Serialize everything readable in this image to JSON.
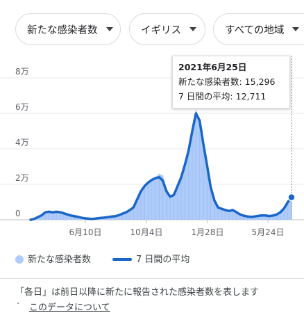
{
  "filters": [
    {
      "label": "新たな感染者数"
    },
    {
      "label": "イギリス"
    },
    {
      "label": "すべての地域"
    }
  ],
  "tooltip": {
    "date": "2021年6月25日",
    "line1": "新たな感染者数: 15,296",
    "line2": "7 日間の平均: 12,711"
  },
  "legend": {
    "daily": "新たな感染者数",
    "avg": "7 日間の平均"
  },
  "colors": {
    "bars": "#aecbfa",
    "line": "#1a66c9"
  },
  "footnote": {
    "text": "「各日」は前日以降に新たに報告された感染者数を表します",
    "bullet": "·",
    "link": "このデータについて"
  },
  "chart_data": {
    "type": "area",
    "x_ticks": [
      "6月10日",
      "10月4日",
      "1月28日",
      "5月24日"
    ],
    "y_ticks": [
      "0",
      "2万",
      "4万",
      "6万",
      "8万"
    ],
    "ylim": [
      0,
      80000
    ],
    "grid": true,
    "highlight": {
      "date": "2021年6月25日",
      "daily": 15296,
      "avg": 12711
    },
    "series": [
      {
        "name": "新たな感染者数",
        "values": [
          0,
          600,
          1500,
          2700,
          4400,
          5200,
          4400,
          5200,
          4800,
          4200,
          3400,
          2700,
          2200,
          1700,
          1200,
          900,
          700,
          600,
          900,
          1300,
          1400,
          1700,
          2000,
          2200,
          2800,
          3600,
          4500,
          6000,
          8000,
          12000,
          16000,
          19000,
          21000,
          23000,
          24000,
          26000,
          25000,
          18000,
          14000,
          15000,
          20000,
          25000,
          32000,
          40000,
          50000,
          62000,
          57000,
          44000,
          33000,
          20000,
          12000,
          8000,
          6500,
          6000,
          5500,
          5800,
          4500,
          3300,
          2500,
          2100,
          1900,
          2100,
          2400,
          2800,
          2600,
          2300,
          2600,
          3200,
          4500,
          7000,
          11000,
          15296
        ]
      },
      {
        "name": "7 日間の平均",
        "values": [
          0,
          500,
          1500,
          2500,
          4200,
          4600,
          4200,
          4500,
          4300,
          3700,
          3000,
          2400,
          2000,
          1600,
          1100,
          800,
          600,
          500,
          800,
          1000,
          1200,
          1500,
          1800,
          2000,
          2600,
          3400,
          4200,
          5500,
          7000,
          11500,
          16000,
          19000,
          21000,
          22500,
          23500,
          24000,
          22000,
          16000,
          13000,
          14000,
          19000,
          24000,
          31000,
          39000,
          50000,
          60000,
          56000,
          43000,
          31000,
          18500,
          11000,
          7000,
          6200,
          5500,
          5000,
          5500,
          4300,
          3000,
          2300,
          1900,
          1700,
          1900,
          2200,
          2500,
          2400,
          2100,
          2400,
          3000,
          4300,
          6500,
          10000,
          12711
        ]
      }
    ]
  }
}
